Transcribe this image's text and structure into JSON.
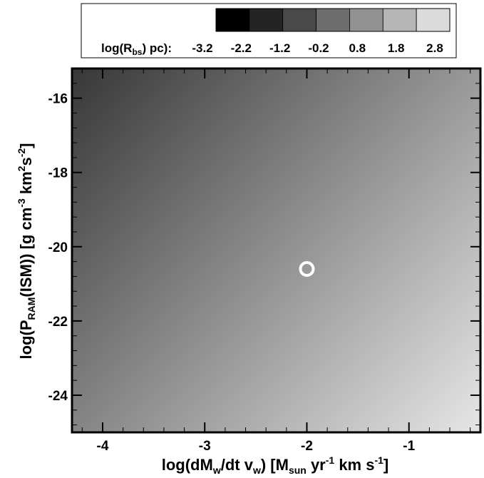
{
  "chart_data": {
    "type": "heatmap",
    "x": {
      "min": -4.3,
      "max": -0.3,
      "ticks": [
        -4,
        -3,
        -2,
        -1
      ],
      "tick_labels": [
        "-4",
        "-3",
        "-2",
        "-1"
      ]
    },
    "y": {
      "min": -25.0,
      "max": -15.2,
      "ticks": [
        -16,
        -18,
        -20,
        -22,
        -24
      ],
      "tick_labels": [
        "-16",
        "-18",
        "-20",
        "-22",
        "-24"
      ]
    },
    "xlabel": {
      "base": "log(dM",
      "sub1": "w",
      "mid1": "/dt v",
      "sub2": "w",
      "mid2": ") [M",
      "sub3": "sun",
      "mid3": " yr",
      "sup1": "-1",
      "end": " km s",
      "sup2": "-1",
      "close": "]"
    },
    "ylabel": {
      "base": "log(P",
      "sub1": "RAM",
      "mid1": "(ISM)) [g  cm",
      "sup1": "-3",
      "mid2": " km",
      "sup2": "2",
      "mid3": "s",
      "sup3": "-2",
      "close": "]"
    },
    "colorbar": {
      "label_prefix": "log(R",
      "label_sub": "bs",
      "label_suffix": ") pc):",
      "levels": [
        -3.2,
        -2.2,
        -1.2,
        -0.2,
        0.8,
        1.8,
        2.8
      ],
      "level_labels": [
        "-3.2",
        "-2.2",
        "-1.2",
        "-0.2",
        "0.8",
        "1.8",
        "2.8"
      ],
      "range": [
        -3.7,
        3.3
      ],
      "colormap": "grayscale, black to white",
      "position": "top"
    },
    "field": {
      "description_of_value": "log(R_bs) varies linearly: increases with x, decreases with y",
      "corner_values": {
        "top_left": -2.2,
        "top_right": 0.0,
        "bottom_left": 0.4,
        "bottom_right": 2.6
      }
    },
    "marker": {
      "shape": "open-circle",
      "x": -2.0,
      "y": -20.6,
      "color": "#ffffff"
    },
    "minor_ticks": {
      "x_step": 0.2,
      "y_step": 0.4
    }
  }
}
